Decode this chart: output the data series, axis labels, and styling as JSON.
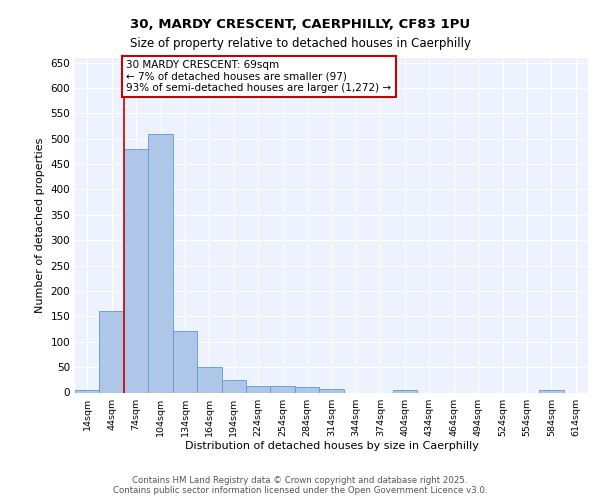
{
  "title_line1": "30, MARDY CRESCENT, CAERPHILLY, CF83 1PU",
  "title_line2": "Size of property relative to detached houses in Caerphilly",
  "xlabel": "Distribution of detached houses by size in Caerphilly",
  "ylabel": "Number of detached properties",
  "categories": [
    "14sqm",
    "44sqm",
    "74sqm",
    "104sqm",
    "134sqm",
    "164sqm",
    "194sqm",
    "224sqm",
    "254sqm",
    "284sqm",
    "314sqm",
    "344sqm",
    "374sqm",
    "404sqm",
    "434sqm",
    "464sqm",
    "494sqm",
    "524sqm",
    "554sqm",
    "584sqm",
    "614sqm"
  ],
  "values": [
    5,
    160,
    480,
    510,
    122,
    50,
    25,
    13,
    13,
    10,
    7,
    0,
    0,
    5,
    0,
    0,
    0,
    0,
    0,
    5,
    0
  ],
  "bar_color": "#aec6e8",
  "bar_edge_color": "#5b9bd5",
  "redline_index": 1.5,
  "ylim": [
    0,
    660
  ],
  "yticks": [
    0,
    50,
    100,
    150,
    200,
    250,
    300,
    350,
    400,
    450,
    500,
    550,
    600,
    650
  ],
  "annotation_text": "30 MARDY CRESCENT: 69sqm\n← 7% of detached houses are smaller (97)\n93% of semi-detached houses are larger (1,272) →",
  "annotation_box_facecolor": "#ffffff",
  "annotation_box_edgecolor": "#cc0000",
  "footer_text": "Contains HM Land Registry data © Crown copyright and database right 2025.\nContains public sector information licensed under the Open Government Licence v3.0.",
  "plot_bg_color": "#eef2ff",
  "grid_color": "#ffffff",
  "fig_bg_color": "#ffffff"
}
